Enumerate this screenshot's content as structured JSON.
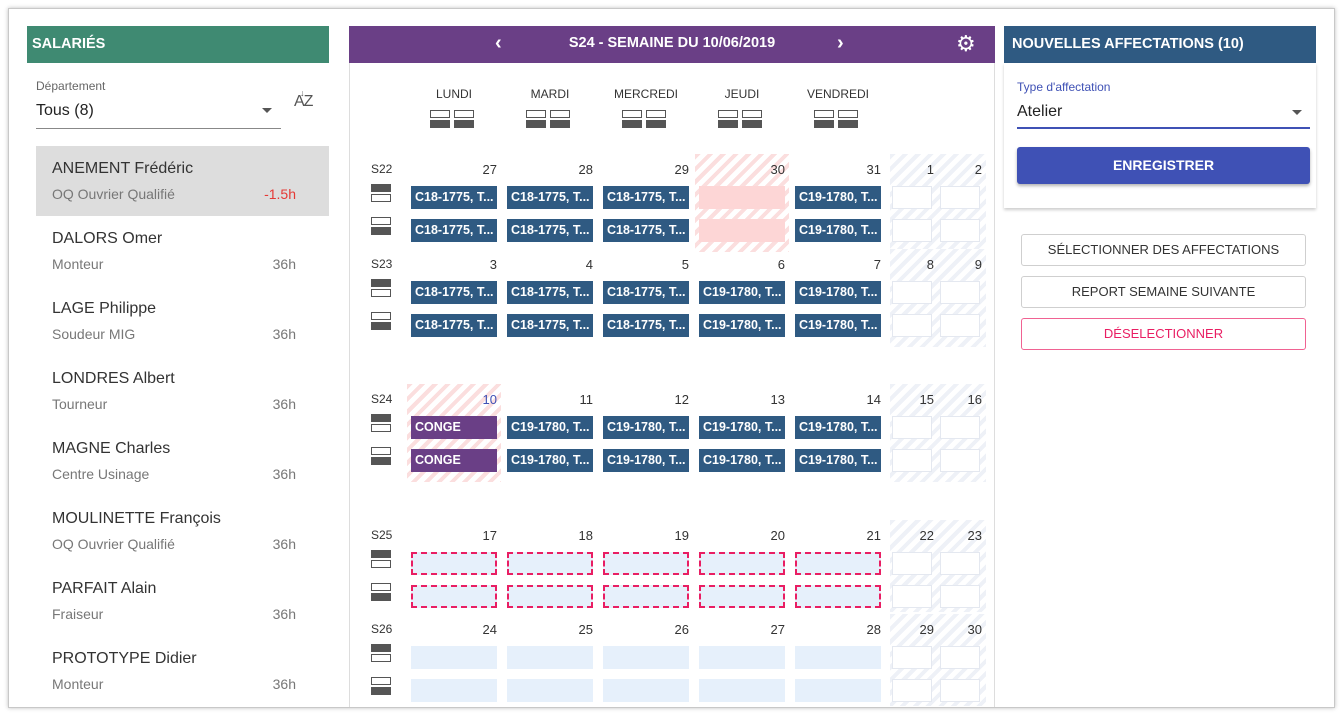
{
  "salaries": {
    "header": "SALARIÉS",
    "department_label": "Département",
    "department_value": "Tous (8)",
    "sort_icon": "sort-az-icon",
    "employees": [
      {
        "name": "ANEMENT Frédéric",
        "role": "OQ Ouvrier Qualifié",
        "hours": "-1.5h",
        "selected": true
      },
      {
        "name": "DALORS Omer",
        "role": "Monteur",
        "hours": "36h"
      },
      {
        "name": "LAGE Philippe",
        "role": "Soudeur MIG",
        "hours": "36h"
      },
      {
        "name": "LONDRES Albert",
        "role": "Tourneur",
        "hours": "36h"
      },
      {
        "name": "MAGNE Charles",
        "role": "Centre Usinage",
        "hours": "36h"
      },
      {
        "name": "MOULINETTE François",
        "role": "OQ Ouvrier Qualifié",
        "hours": "36h"
      },
      {
        "name": "PARFAIT Alain",
        "role": "Fraiseur",
        "hours": "36h"
      },
      {
        "name": "PROTOTYPE Didier",
        "role": "Monteur",
        "hours": "36h"
      }
    ]
  },
  "calendar": {
    "title": "S24 - SEMAINE DU 10/06/2019",
    "prev": "‹",
    "next": "›",
    "days": [
      "LUNDI",
      "MARDI",
      "MERCREDI",
      "JEUDI",
      "VENDREDI"
    ],
    "weeks": [
      {
        "label": "S22",
        "dates": [
          "27",
          "28",
          "29",
          "30",
          "31",
          "1",
          "2"
        ],
        "rows": [
          [
            "C18-1775, T...",
            "C18-1775, T...",
            "C18-1775, T...",
            "",
            "C19-1780, T..."
          ],
          [
            "C18-1775, T...",
            "C18-1775, T...",
            "C18-1775, T...",
            "",
            "C19-1780, T..."
          ]
        ]
      },
      {
        "label": "S23",
        "dates": [
          "3",
          "4",
          "5",
          "6",
          "7",
          "8",
          "9"
        ],
        "rows": [
          [
            "C18-1775, T...",
            "C18-1775, T...",
            "C18-1775, T...",
            "C19-1780, T...",
            "C19-1780, T..."
          ],
          [
            "C18-1775, T...",
            "C18-1775, T...",
            "C18-1775, T...",
            "C19-1780, T...",
            "C19-1780, T..."
          ]
        ]
      },
      {
        "label": "S24",
        "dates": [
          "10",
          "11",
          "12",
          "13",
          "14",
          "15",
          "16"
        ],
        "rows": [
          [
            "CONGE",
            "C19-1780, T...",
            "C19-1780, T...",
            "C19-1780, T...",
            "C19-1780, T..."
          ],
          [
            "CONGE",
            "C19-1780, T...",
            "C19-1780, T...",
            "C19-1780, T...",
            "C19-1780, T..."
          ]
        ]
      },
      {
        "label": "S25",
        "dates": [
          "17",
          "18",
          "19",
          "20",
          "21",
          "22",
          "23"
        ]
      },
      {
        "label": "S26",
        "dates": [
          "24",
          "25",
          "26",
          "27",
          "28",
          "29",
          "30"
        ]
      }
    ]
  },
  "affectations": {
    "header": "NOUVELLES AFFECTATIONS (10)",
    "type_label": "Type d'affectation",
    "type_value": "Atelier",
    "save": "ENREGISTRER",
    "select": "SÉLECTIONNER DES AFFECTATIONS",
    "report": "REPORT SEMAINE SUIVANTE",
    "deselect": "DÉSELECTIONNER"
  },
  "colors": {
    "salaries_header": "#3f8a72",
    "calendar_header": "#6a3f86",
    "affect_header": "#2f5a82",
    "accent": "#3f51b5",
    "danger": "#e91e63"
  }
}
